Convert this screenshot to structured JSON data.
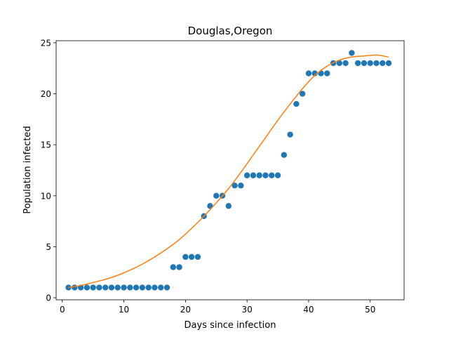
{
  "chart_data": {
    "type": "scatter",
    "title": "Douglas,Oregon",
    "xlabel": "Days since infection",
    "ylabel": "Population infected",
    "xlim": [
      -1,
      55.5
    ],
    "ylim": [
      -0.2,
      25.2
    ],
    "xticks": [
      0,
      10,
      20,
      30,
      40,
      50
    ],
    "yticks": [
      0,
      5,
      10,
      15,
      20,
      25
    ],
    "grid": false,
    "series": [
      {
        "kind": "scatter",
        "color": "#1f77b4",
        "x": [
          1,
          2,
          3,
          4,
          5,
          6,
          7,
          8,
          9,
          10,
          11,
          12,
          13,
          14,
          15,
          16,
          17,
          18,
          19,
          20,
          21,
          22,
          23,
          24,
          25,
          26,
          27,
          28,
          29,
          30,
          31,
          32,
          33,
          34,
          35,
          36,
          37,
          38,
          39,
          40,
          41,
          42,
          43,
          44,
          45,
          46,
          47,
          48,
          49,
          50,
          51,
          52,
          53
        ],
        "y": [
          1,
          1,
          1,
          1,
          1,
          1,
          1,
          1,
          1,
          1,
          1,
          1,
          1,
          1,
          1,
          1,
          1,
          3,
          3,
          4,
          4,
          4,
          8,
          9,
          10,
          10,
          9,
          11,
          11,
          12,
          12,
          12,
          12,
          12,
          12,
          14,
          16,
          19,
          20,
          22,
          22,
          22,
          22,
          23,
          23,
          23,
          24,
          23,
          23,
          23,
          23,
          23,
          23
        ]
      },
      {
        "kind": "line",
        "color": "#ff7f0e",
        "x": [
          1,
          3,
          5,
          7,
          9,
          11,
          13,
          15,
          17,
          19,
          21,
          23,
          25,
          27,
          29,
          31,
          33,
          35,
          37,
          39,
          41,
          43,
          45,
          47,
          49,
          51,
          53
        ],
        "y": [
          1.0,
          1.2,
          1.5,
          1.8,
          2.2,
          2.7,
          3.3,
          4.0,
          4.8,
          5.7,
          6.8,
          8.0,
          9.3,
          10.7,
          12.3,
          14.0,
          15.7,
          17.4,
          19.0,
          20.5,
          21.8,
          22.7,
          23.3,
          23.6,
          23.7,
          23.8,
          23.6
        ]
      }
    ]
  }
}
